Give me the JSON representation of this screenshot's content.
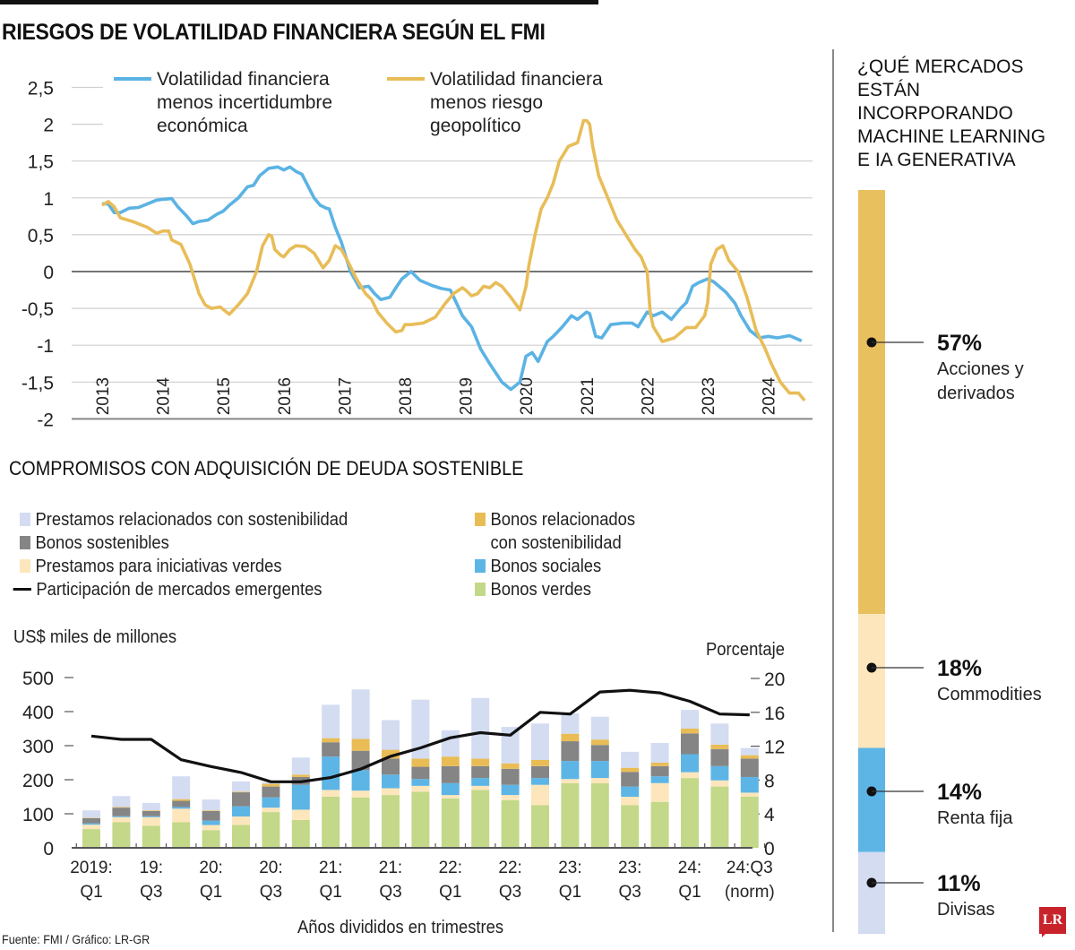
{
  "header": {
    "title": "RIESGOS DE VOLATILIDAD FINANCIERA SEGÚN EL FMI"
  },
  "colors": {
    "blue_line": "#5bb3e3",
    "gold_line": "#e8bd58",
    "prestamos_sostenibilidad": "#d3dcf1",
    "bonos_sostenibles": "#858585",
    "prestamos_verdes": "#fde6bb",
    "bonos_relacionados": "#e9bc55",
    "bonos_sociales": "#5db5e6",
    "bonos_verdes": "#c3d888",
    "em_line": "#111111",
    "side_acciones": "#e9c05e",
    "side_commodities": "#fde6bb",
    "side_renta": "#5db5e6",
    "side_divisas": "#d3dcf1"
  },
  "chart_data": [
    {
      "id": "volatilidad",
      "type": "line",
      "title": "RIESGOS DE VOLATILIDAD FINANCIERA SEGÚN EL FMI",
      "xlabel": "",
      "ylabel": "",
      "ylim": [
        -2,
        2.5
      ],
      "yticks": [
        2.5,
        2,
        1.5,
        1,
        0.5,
        0,
        -0.5,
        -1,
        -1.5,
        -2
      ],
      "ytick_labels": [
        "2,5",
        "2",
        "1,5",
        "1",
        "0,5",
        "0",
        "-0,5",
        "-1",
        "-1,5",
        "-2"
      ],
      "xlim": [
        2013,
        2024.75
      ],
      "xticks": [
        "2013",
        "2014",
        "2015",
        "2016",
        "2017",
        "2018",
        "2019",
        "2020",
        "2021",
        "2022",
        "2023",
        "2024"
      ],
      "grid": true,
      "legend_position": "top",
      "series": [
        {
          "name": "Volatilidad financiera menos incertidumbre económica",
          "name_lines": [
            "Volatilidad financiera",
            "menos incertidumbre",
            "económica"
          ],
          "x": [
            2013.0,
            2013.1,
            2013.2,
            2013.3,
            2013.45,
            2013.6,
            2013.75,
            2013.9,
            2014.0,
            2014.15,
            2014.25,
            2014.4,
            2014.5,
            2014.6,
            2014.75,
            2014.9,
            2015.0,
            2015.1,
            2015.25,
            2015.4,
            2015.5,
            2015.6,
            2015.75,
            2015.9,
            2016.0,
            2016.1,
            2016.2,
            2016.3,
            2016.5,
            2016.6,
            2016.7,
            2016.75,
            2016.85,
            2016.95,
            2017.1,
            2017.25,
            2017.4,
            2017.5,
            2017.6,
            2017.75,
            2017.85,
            2017.95,
            2018.1,
            2018.25,
            2018.45,
            2018.6,
            2018.75,
            2018.95,
            2019.1,
            2019.25,
            2019.4,
            2019.6,
            2019.75,
            2019.9,
            2020.0,
            2020.1,
            2020.2,
            2020.35,
            2020.45,
            2020.6,
            2020.75,
            2020.85,
            2021.0,
            2021.05,
            2021.15,
            2021.25,
            2021.4,
            2021.6,
            2021.75,
            2021.85,
            2022.0,
            2022.1,
            2022.25,
            2022.4,
            2022.55,
            2022.65,
            2022.75,
            2022.85,
            2023.0,
            2023.1,
            2023.3,
            2023.45,
            2023.55,
            2023.7,
            2023.85,
            2024.0,
            2024.15,
            2024.35,
            2024.55
          ],
          "y": [
            0.92,
            0.92,
            0.8,
            0.8,
            0.86,
            0.87,
            0.92,
            0.97,
            0.98,
            0.99,
            0.88,
            0.75,
            0.65,
            0.68,
            0.7,
            0.78,
            0.82,
            0.9,
            1.0,
            1.15,
            1.17,
            1.3,
            1.4,
            1.42,
            1.38,
            1.42,
            1.36,
            1.32,
            1.0,
            0.9,
            0.86,
            0.85,
            0.6,
            0.4,
            0.0,
            -0.22,
            -0.2,
            -0.3,
            -0.38,
            -0.35,
            -0.22,
            -0.1,
            0.0,
            -0.12,
            -0.19,
            -0.23,
            -0.25,
            -0.6,
            -0.75,
            -1.05,
            -1.25,
            -1.5,
            -1.6,
            -1.5,
            -1.15,
            -1.1,
            -1.22,
            -0.95,
            -0.88,
            -0.75,
            -0.6,
            -0.65,
            -0.55,
            -0.57,
            -0.88,
            -0.9,
            -0.72,
            -0.7,
            -0.7,
            -0.75,
            -0.55,
            -0.6,
            -0.55,
            -0.65,
            -0.5,
            -0.42,
            -0.2,
            -0.15,
            -0.1,
            -0.14,
            -0.28,
            -0.43,
            -0.6,
            -0.8,
            -0.9,
            -0.88,
            -0.9,
            -0.87,
            -0.94
          ]
        },
        {
          "name": "Volatilidad financiera menos riesgo geopolítico",
          "name_lines": [
            "Volatilidad financiera",
            "menos riesgo",
            "geopolítico"
          ],
          "x": [
            2013.0,
            2013.1,
            2013.2,
            2013.3,
            2013.5,
            2013.75,
            2013.9,
            2014.0,
            2014.1,
            2014.15,
            2014.3,
            2014.45,
            2014.6,
            2014.7,
            2014.8,
            2014.95,
            2015.1,
            2015.25,
            2015.4,
            2015.55,
            2015.65,
            2015.75,
            2015.8,
            2015.85,
            2015.95,
            2016.0,
            2016.1,
            2016.2,
            2016.35,
            2016.5,
            2016.65,
            2016.75,
            2016.85,
            2016.95,
            2017.05,
            2017.2,
            2017.35,
            2017.45,
            2017.55,
            2017.7,
            2017.85,
            2017.95,
            2018.0,
            2018.1,
            2018.3,
            2018.5,
            2018.65,
            2018.8,
            2018.95,
            2019.0,
            2019.1,
            2019.2,
            2019.3,
            2019.4,
            2019.5,
            2019.6,
            2019.75,
            2019.9,
            2020.0,
            2020.05,
            2020.15,
            2020.25,
            2020.35,
            2020.45,
            2020.55,
            2020.7,
            2020.85,
            2020.95,
            2021.0,
            2021.05,
            2021.1,
            2021.2,
            2021.35,
            2021.5,
            2021.65,
            2021.8,
            2021.9,
            2022.0,
            2022.05,
            2022.1,
            2022.25,
            2022.45,
            2022.65,
            2022.8,
            2022.95,
            2023.0,
            2023.05,
            2023.15,
            2023.25,
            2023.35,
            2023.5,
            2023.65,
            2023.8,
            2023.95,
            2024.05,
            2024.2,
            2024.35,
            2024.5,
            2024.6
          ],
          "y": [
            0.9,
            0.95,
            0.88,
            0.73,
            0.68,
            0.6,
            0.52,
            0.55,
            0.55,
            0.43,
            0.37,
            0.1,
            -0.3,
            -0.45,
            -0.5,
            -0.48,
            -0.58,
            -0.45,
            -0.3,
            0.0,
            0.35,
            0.5,
            0.48,
            0.3,
            0.22,
            0.2,
            0.3,
            0.35,
            0.34,
            0.25,
            0.05,
            0.15,
            0.35,
            0.3,
            0.15,
            -0.1,
            -0.3,
            -0.38,
            -0.55,
            -0.7,
            -0.82,
            -0.8,
            -0.72,
            -0.72,
            -0.7,
            -0.62,
            -0.45,
            -0.3,
            -0.22,
            -0.25,
            -0.33,
            -0.3,
            -0.2,
            -0.22,
            -0.15,
            -0.2,
            -0.35,
            -0.52,
            -0.2,
            0.1,
            0.5,
            0.85,
            1.0,
            1.2,
            1.5,
            1.7,
            1.75,
            2.05,
            2.05,
            2.0,
            1.7,
            1.3,
            1.0,
            0.7,
            0.5,
            0.3,
            0.2,
            0.0,
            -0.55,
            -0.75,
            -0.95,
            -0.9,
            -0.76,
            -0.76,
            -0.6,
            -0.42,
            0.1,
            0.3,
            0.35,
            0.15,
            0.0,
            -0.35,
            -0.8,
            -1.05,
            -1.25,
            -1.5,
            -1.65,
            -1.65,
            -1.75
          ]
        }
      ]
    },
    {
      "id": "deuda_sostenible",
      "type": "bar",
      "stacked": true,
      "title": "COMPROMISOS CON ADQUISICIÓN DE DEUDA SOSTENIBLE",
      "xlabel": "Años divididos en trimestres",
      "ylabel": "US$ miles de millones",
      "y2label": "Porcentaje",
      "ylim": [
        0,
        500
      ],
      "yticks": [
        0,
        100,
        200,
        300,
        400,
        500
      ],
      "y2lim": [
        0,
        20
      ],
      "y2ticks": [
        0,
        4,
        8,
        12,
        16,
        20
      ],
      "xtick_labels": [
        [
          "2019:",
          "Q1"
        ],
        [
          "19:",
          "Q3"
        ],
        [
          "20:",
          "Q1"
        ],
        [
          "20:",
          "Q3"
        ],
        [
          "21:",
          "Q1"
        ],
        [
          "21:",
          "Q3"
        ],
        [
          "22:",
          "Q1"
        ],
        [
          "22:",
          "Q3"
        ],
        [
          "23:",
          "Q1"
        ],
        [
          "23:",
          "Q3"
        ],
        [
          "24:",
          "Q1"
        ],
        [
          "24:Q3",
          "(norm)"
        ]
      ],
      "categories": [
        "2019Q1",
        "2019Q2",
        "2019Q3",
        "2019Q4",
        "2020Q1",
        "2020Q2",
        "2020Q3",
        "2020Q4",
        "2021Q1",
        "2021Q2",
        "2021Q3",
        "2021Q4",
        "2022Q1",
        "2022Q2",
        "2022Q3",
        "2022Q4",
        "2023Q1",
        "2023Q2",
        "2023Q3",
        "2023Q4",
        "2024Q1",
        "2024Q2",
        "2024Q3 (norm)"
      ],
      "legend_position": "top",
      "series": [
        {
          "name": "Bonos verdes",
          "key": "bonos_verdes",
          "values": [
            55,
            75,
            65,
            75,
            52,
            67,
            105,
            82,
            150,
            148,
            155,
            165,
            145,
            170,
            140,
            125,
            190,
            190,
            125,
            135,
            205,
            180,
            150
          ]
        },
        {
          "name": "Prestamos para iniciativas verdes",
          "key": "prestamos_verdes",
          "values": [
            13,
            15,
            25,
            40,
            15,
            25,
            13,
            30,
            20,
            20,
            20,
            17,
            10,
            12,
            15,
            60,
            12,
            15,
            25,
            55,
            17,
            18,
            12
          ]
        },
        {
          "name": "Bonos sociales",
          "key": "bonos_sociales",
          "values": [
            4,
            3,
            3,
            5,
            13,
            30,
            30,
            73,
            98,
            60,
            40,
            20,
            35,
            23,
            30,
            20,
            53,
            50,
            30,
            20,
            53,
            42,
            46
          ]
        },
        {
          "name": "Bonos sostenibles",
          "key": "bonos_sostenibles",
          "values": [
            15,
            25,
            15,
            18,
            28,
            41,
            32,
            23,
            42,
            57,
            47,
            36,
            50,
            35,
            47,
            35,
            58,
            47,
            43,
            30,
            61,
            50,
            54
          ]
        },
        {
          "name": "Bonos relacionados con sostenibilidad",
          "name_lines": [
            "Bonos relacionados",
            "con sostenibilidad"
          ],
          "key": "bonos_relacionados",
          "values": [
            1,
            2,
            2,
            5,
            2,
            2,
            8,
            7,
            12,
            35,
            26,
            24,
            28,
            22,
            16,
            18,
            22,
            16,
            12,
            10,
            14,
            13,
            10
          ]
        },
        {
          "name": "Prestamos relacionados con sostenibilidad",
          "key": "prestamos_sostenibilidad",
          "values": [
            22,
            32,
            22,
            67,
            32,
            30,
            4,
            50,
            98,
            145,
            87,
            173,
            77,
            178,
            107,
            107,
            60,
            67,
            47,
            58,
            55,
            62,
            21
          ]
        }
      ],
      "line_series": {
        "name": "Participación de mercados emergentes",
        "axis": "right",
        "values": [
          13.2,
          12.8,
          12.8,
          10.4,
          9.6,
          8.9,
          7.8,
          7.8,
          8.3,
          9.3,
          10.8,
          11.8,
          13.0,
          13.6,
          13.3,
          16.0,
          15.8,
          18.4,
          18.6,
          18.3,
          17.3,
          15.8,
          15.7
        ]
      }
    },
    {
      "id": "mercados_ia",
      "type": "bar",
      "stacked": true,
      "title": "¿QUÉ MERCADOS ESTÁN INCORPORANDO MACHINE LEARNING E IA GENERATIVA",
      "categories": [
        "Acciones y derivados",
        "Commodities",
        "Renta fija",
        "Divisas"
      ],
      "values": [
        57,
        18,
        14,
        11
      ],
      "unit": "%"
    }
  ],
  "legend": {
    "left": [
      {
        "label": "Prestamos relacionados con sostenibilidad",
        "key": "prestamos_sostenibilidad",
        "kind": "swatch"
      },
      {
        "label": "Bonos sostenibles",
        "key": "bonos_sostenibles",
        "kind": "swatch"
      },
      {
        "label": "Prestamos para iniciativas verdes",
        "key": "prestamos_verdes",
        "kind": "swatch"
      },
      {
        "label": "Participación de mercados emergentes",
        "key": "em_line",
        "kind": "line"
      }
    ],
    "right": [
      {
        "label": "Bonos relacionados",
        "label2": "con sostenibilidad",
        "key": "bonos_relacionados",
        "kind": "swatch"
      },
      {
        "label": "Bonos sociales",
        "key": "bonos_sociales",
        "kind": "swatch"
      },
      {
        "label": "Bonos verdes",
        "key": "bonos_verdes",
        "kind": "swatch"
      }
    ]
  },
  "section2": {
    "title": "COMPROMISOS CON ADQUISICIÓN DE DEUDA SOSTENIBLE",
    "left_unit": "US$ miles de millones",
    "right_unit": "Porcentaje",
    "xlabel": "Años divididos en trimestres"
  },
  "side": {
    "title_lines": [
      "¿QUÉ MERCADOS",
      "ESTÁN",
      "INCORPORANDO",
      "MACHINE LEARNING",
      "E IA GENERATIVA"
    ],
    "items": [
      {
        "pct": "57%",
        "label_lines": [
          "Acciones y",
          "derivados"
        ],
        "key": "side_acciones"
      },
      {
        "pct": "18%",
        "label_lines": [
          "Commodities"
        ],
        "key": "side_commodities"
      },
      {
        "pct": "14%",
        "label_lines": [
          "Renta fija"
        ],
        "key": "side_renta"
      },
      {
        "pct": "11%",
        "label_lines": [
          "Divisas"
        ],
        "key": "side_divisas"
      }
    ]
  },
  "footer": {
    "source": "Fuente: FMI / Gráfico: LR-GR",
    "logo": "LR"
  }
}
